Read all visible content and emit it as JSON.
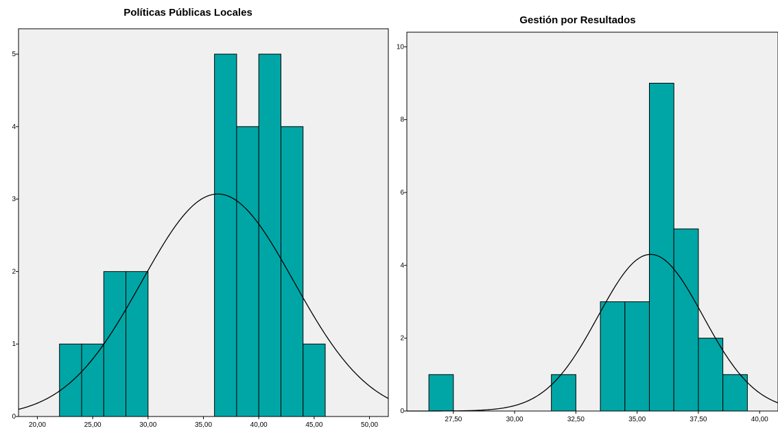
{
  "chart_data": [
    {
      "type": "bar",
      "title": "Políticas Públicas Locales",
      "xlabel": "",
      "ylabel": "",
      "xlim": [
        18.3,
        51.7
      ],
      "ylim": [
        0,
        5.35
      ],
      "x_ticks": [
        20,
        25,
        30,
        35,
        40,
        45,
        50
      ],
      "x_tick_labels": [
        "20,00",
        "25,00",
        "30,00",
        "35,00",
        "40,00",
        "45,00",
        "50,00"
      ],
      "y_ticks": [
        0,
        1,
        2,
        3,
        4,
        5
      ],
      "y_tick_labels": [
        "0",
        "1",
        "2",
        "3",
        "4",
        "5"
      ],
      "bin_width": 2,
      "bins": [
        {
          "start": 22,
          "end": 24,
          "count": 1
        },
        {
          "start": 24,
          "end": 26,
          "count": 1
        },
        {
          "start": 26,
          "end": 28,
          "count": 2
        },
        {
          "start": 28,
          "end": 30,
          "count": 2
        },
        {
          "start": 36,
          "end": 38,
          "count": 5
        },
        {
          "start": 38,
          "end": 40,
          "count": 4
        },
        {
          "start": 40,
          "end": 42,
          "count": 5
        },
        {
          "start": 42,
          "end": 44,
          "count": 4
        },
        {
          "start": 44,
          "end": 46,
          "count": 1
        }
      ],
      "normal_curve": {
        "mean": 36.3,
        "sd": 6.87,
        "peak": 3.07
      },
      "grid": false,
      "colors": {
        "bar": "#00a6a6",
        "plot_background": "#f0f0f0"
      }
    },
    {
      "type": "bar",
      "title": "Gestión por Resultados",
      "xlabel": "",
      "ylabel": "",
      "xlim": [
        25.6,
        40.75
      ],
      "ylim": [
        0,
        10.4
      ],
      "x_ticks": [
        27.5,
        30,
        32.5,
        35,
        37.5,
        40
      ],
      "x_tick_labels": [
        "27,50",
        "30,00",
        "32,50",
        "35,00",
        "37,50",
        "40,00"
      ],
      "y_ticks": [
        0,
        2,
        4,
        6,
        8,
        10
      ],
      "y_tick_labels": [
        "0",
        "2",
        "4",
        "6",
        "8",
        "10"
      ],
      "bin_width": 1,
      "bins": [
        {
          "start": 26.5,
          "end": 27.5,
          "count": 1
        },
        {
          "start": 31.5,
          "end": 32.5,
          "count": 1
        },
        {
          "start": 33.5,
          "end": 34.5,
          "count": 3
        },
        {
          "start": 34.5,
          "end": 35.5,
          "count": 3
        },
        {
          "start": 35.5,
          "end": 36.5,
          "count": 9
        },
        {
          "start": 36.5,
          "end": 37.5,
          "count": 5
        },
        {
          "start": 37.5,
          "end": 38.5,
          "count": 2
        },
        {
          "start": 38.5,
          "end": 39.5,
          "count": 1
        }
      ],
      "normal_curve": {
        "mean": 35.55,
        "sd": 2.14,
        "peak": 4.3
      },
      "grid": false,
      "colors": {
        "bar": "#00a6a6",
        "plot_background": "#f0f0f0"
      }
    }
  ]
}
